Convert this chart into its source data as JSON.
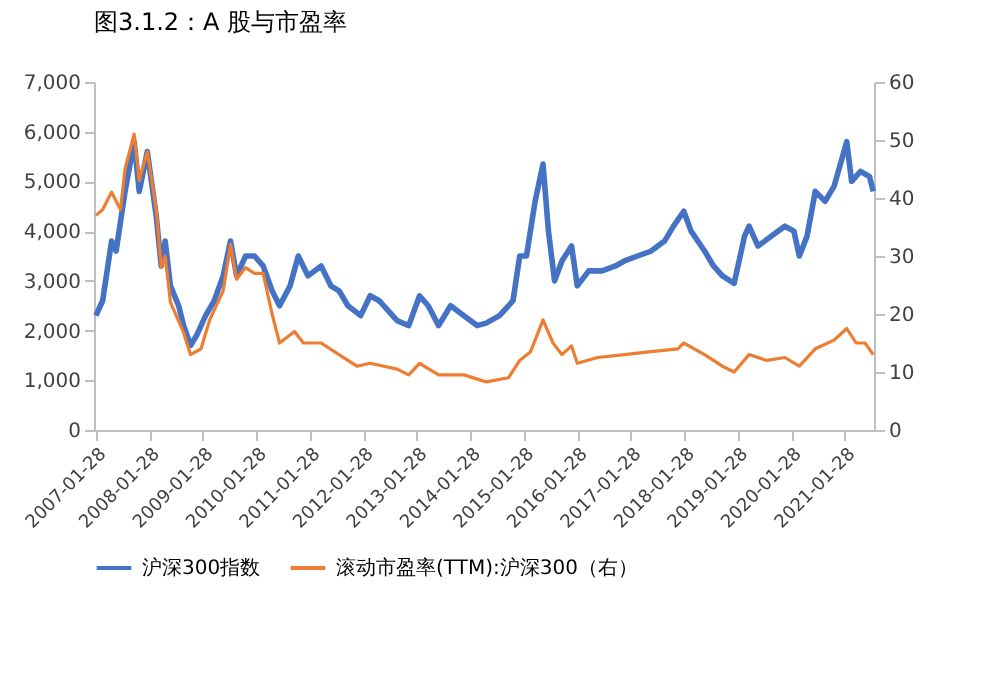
{
  "chart_data": {
    "type": "line",
    "title": "图3.1.2：A 股与市盈率",
    "xlim": [
      "2007-01-15",
      "2021-08-15"
    ],
    "xticks": [
      "2007-01-28",
      "2008-01-28",
      "2009-01-28",
      "2010-01-28",
      "2011-01-28",
      "2012-01-28",
      "2013-01-28",
      "2014-01-28",
      "2015-01-28",
      "2016-01-28",
      "2017-01-28",
      "2018-01-28",
      "2019-01-28",
      "2020-01-28",
      "2021-01-28"
    ],
    "ylim": [
      0,
      7000
    ],
    "yticks": [
      0,
      {
        "value": 1000,
        "label": "1,000"
      },
      {
        "value": 2000,
        "label": "2,000"
      },
      {
        "value": 3000,
        "label": "3,000"
      },
      {
        "value": 4000,
        "label": "4,000"
      },
      {
        "value": 5000,
        "label": "5,000"
      },
      {
        "value": 6000,
        "label": "6,000"
      },
      {
        "value": 7000,
        "label": "7,000"
      }
    ],
    "y2lim": [
      0,
      60
    ],
    "y2ticks": [
      0,
      10,
      20,
      30,
      40,
      50,
      60
    ],
    "grid": false,
    "legend": "bottom",
    "marker": "none",
    "line_style": "solid",
    "series": [
      {
        "name": "沪深300指数",
        "color": "#4472c4",
        "x": [
          "2007-01-28",
          "2007-03-15",
          "2007-05-15",
          "2007-06-15",
          "2007-08-15",
          "2007-10-16",
          "2007-11-20",
          "2008-01-14",
          "2008-03-15",
          "2008-04-18",
          "2008-05-15",
          "2008-06-20",
          "2008-08-15",
          "2008-09-18",
          "2008-11-04",
          "2008-12-15",
          "2009-02-15",
          "2009-04-15",
          "2009-06-15",
          "2009-08-04",
          "2009-09-15",
          "2009-11-15",
          "2010-01-15",
          "2010-03-15",
          "2010-05-15",
          "2010-07-05",
          "2010-09-15",
          "2010-11-10",
          "2011-01-15",
          "2011-04-15",
          "2011-06-20",
          "2011-08-15",
          "2011-10-15",
          "2012-01-10",
          "2012-03-15",
          "2012-05-15",
          "2012-09-15",
          "2012-12-03",
          "2013-02-15",
          "2013-04-15",
          "2013-06-25",
          "2013-09-15",
          "2013-12-15",
          "2014-03-15",
          "2014-05-15",
          "2014-08-15",
          "2014-11-15",
          "2014-12-31",
          "2015-02-15",
          "2015-04-15",
          "2015-06-08",
          "2015-07-15",
          "2015-08-26",
          "2015-10-15",
          "2015-12-20",
          "2016-01-28",
          "2016-04-15",
          "2016-07-15",
          "2016-10-15",
          "2016-12-15",
          "2017-03-15",
          "2017-06-15",
          "2017-09-15",
          "2017-11-15",
          "2018-01-24",
          "2018-03-15",
          "2018-06-15",
          "2018-08-15",
          "2018-10-15",
          "2019-01-03",
          "2019-03-15",
          "2019-04-15",
          "2019-06-15",
          "2019-09-15",
          "2019-12-15",
          "2020-02-15",
          "2020-03-23",
          "2020-05-15",
          "2020-07-10",
          "2020-09-15",
          "2020-11-15",
          "2021-02-10",
          "2021-03-15",
          "2021-05-15",
          "2021-07-15",
          "2021-08-10"
        ],
        "values": [
          2300,
          2600,
          3800,
          3600,
          4800,
          5800,
          4800,
          5600,
          4300,
          3300,
          3800,
          2900,
          2500,
          2100,
          1700,
          1900,
          2300,
          2600,
          3100,
          3800,
          3100,
          3500,
          3500,
          3300,
          2800,
          2500,
          2900,
          3500,
          3100,
          3300,
          2900,
          2800,
          2500,
          2300,
          2700,
          2600,
          2200,
          2100,
          2700,
          2500,
          2100,
          2500,
          2300,
          2100,
          2150,
          2300,
          2600,
          3500,
          3500,
          4600,
          5350,
          4000,
          3000,
          3400,
          3700,
          2900,
          3200,
          3200,
          3300,
          3400,
          3500,
          3600,
          3800,
          4100,
          4400,
          4000,
          3600,
          3300,
          3100,
          2950,
          3900,
          4100,
          3700,
          3900,
          4100,
          4000,
          3500,
          3900,
          4800,
          4600,
          4900,
          5800,
          5000,
          5200,
          5100,
          4800
        ]
      },
      {
        "name": "滚动市盈率(TTM):沪深300（右）",
        "color": "#ed7d31",
        "axis": "y2",
        "x": [
          "2007-01-28",
          "2007-03-15",
          "2007-05-15",
          "2007-07-15",
          "2007-08-15",
          "2007-10-16",
          "2007-11-20",
          "2008-01-14",
          "2008-03-15",
          "2008-04-18",
          "2008-05-15",
          "2008-06-20",
          "2008-09-15",
          "2008-11-04",
          "2009-01-15",
          "2009-03-15",
          "2009-06-15",
          "2009-08-04",
          "2009-09-15",
          "2009-11-15",
          "2010-01-15",
          "2010-03-15",
          "2010-05-15",
          "2010-07-05",
          "2010-10-15",
          "2010-12-15",
          "2011-04-15",
          "2011-08-15",
          "2011-12-15",
          "2012-03-15",
          "2012-09-15",
          "2012-12-03",
          "2013-02-15",
          "2013-06-25",
          "2013-12-15",
          "2014-05-15",
          "2014-10-15",
          "2014-12-31",
          "2015-03-15",
          "2015-06-08",
          "2015-08-15",
          "2015-10-15",
          "2015-12-20",
          "2016-01-28",
          "2016-06-15",
          "2016-12-15",
          "2017-06-15",
          "2017-12-15",
          "2018-01-24",
          "2018-06-15",
          "2018-10-15",
          "2019-01-03",
          "2019-04-15",
          "2019-08-15",
          "2019-12-15",
          "2020-03-23",
          "2020-07-10",
          "2020-11-15",
          "2021-02-10",
          "2021-04-15",
          "2021-06-15",
          "2021-08-10"
        ],
        "values": [
          37,
          38,
          41,
          38,
          45,
          51,
          43,
          48,
          38,
          28,
          30,
          22,
          17,
          13,
          14,
          19,
          24,
          32,
          26,
          28,
          27,
          27,
          20,
          15,
          17,
          15,
          15,
          13,
          11,
          11.5,
          10.5,
          9.5,
          11.5,
          9.5,
          9.5,
          8.3,
          9,
          12,
          13.5,
          19,
          15,
          13,
          14.5,
          11.5,
          12.5,
          13,
          13.5,
          14,
          15,
          13,
          11,
          10,
          13,
          12,
          12.5,
          11,
          14,
          15.5,
          17.5,
          15,
          15,
          13
        ]
      }
    ]
  }
}
